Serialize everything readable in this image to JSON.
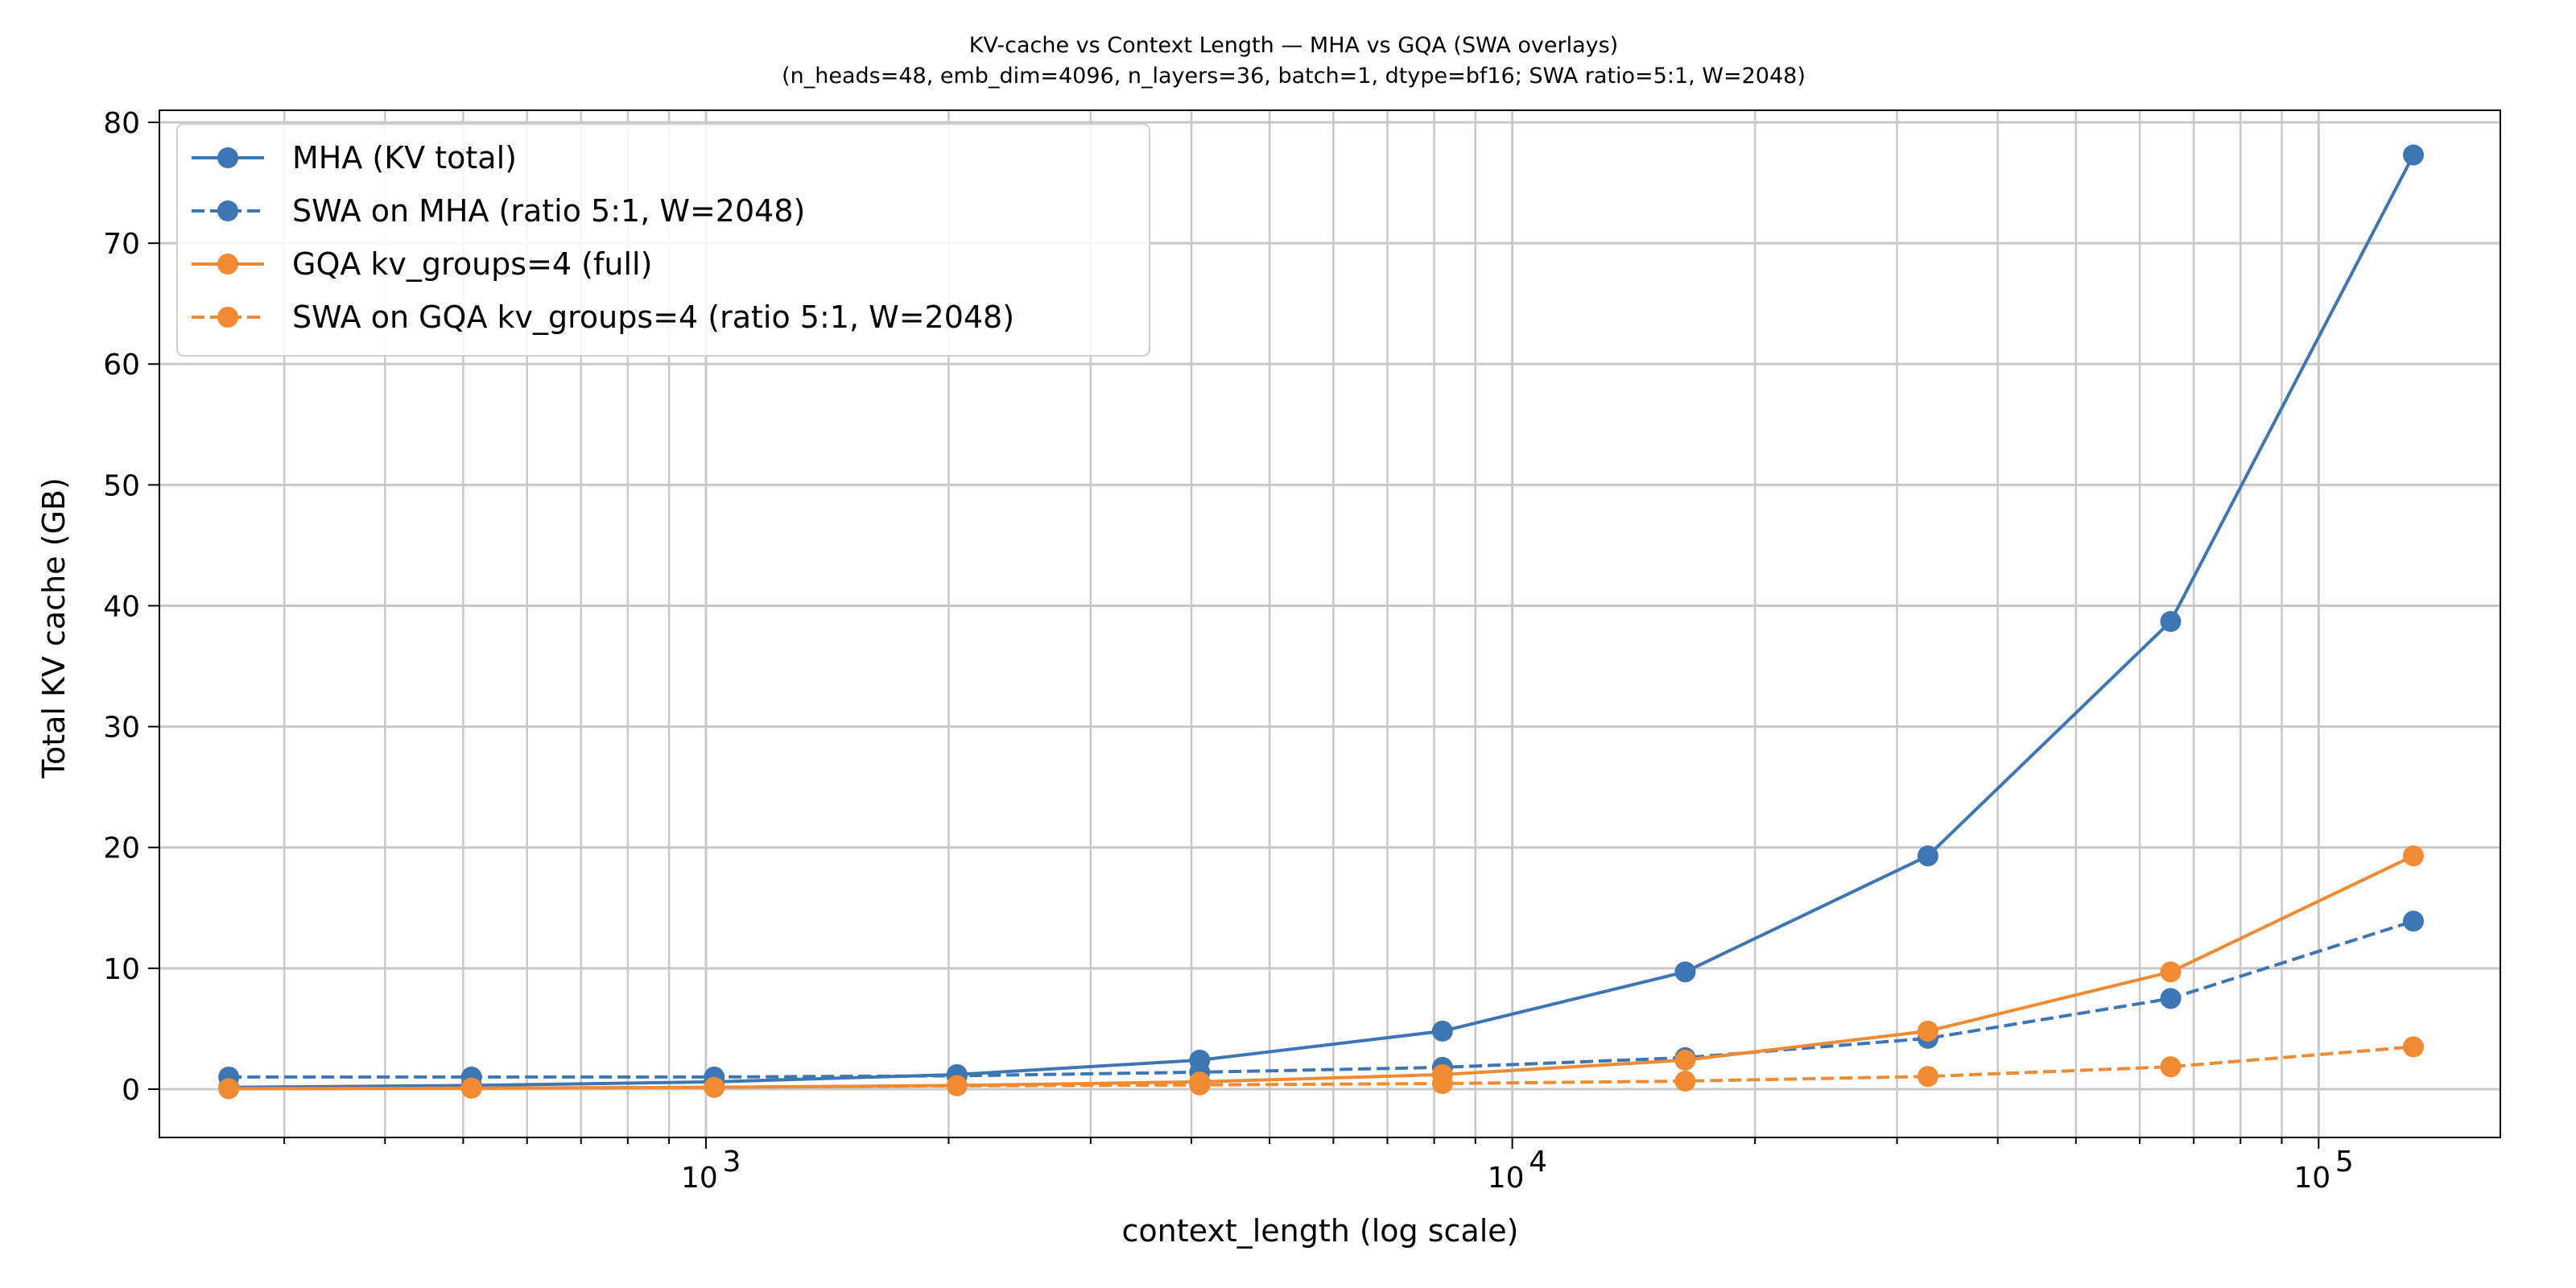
{
  "chart_data": {
    "type": "line",
    "title": "KV-cache vs Context Length — MHA vs GQA (SWA overlays)",
    "subtitle": "(n_heads=48, emb_dim=4096, n_layers=36, batch=1, dtype=bf16; SWA ratio=5:1, W=2048)",
    "xlabel": "context_length (log scale)",
    "ylabel": "Total KV cache (GB)",
    "xscale": "log",
    "xlim": [
      210,
      168000
    ],
    "ylim": [
      -4,
      81
    ],
    "x_ticks": [
      {
        "value": 1000,
        "base": "10",
        "exp": "3"
      },
      {
        "value": 10000,
        "base": "10",
        "exp": "4"
      },
      {
        "value": 100000,
        "base": "10",
        "exp": "5"
      }
    ],
    "y_ticks": [
      0,
      10,
      20,
      30,
      40,
      50,
      60,
      70,
      80
    ],
    "grid": true,
    "legend_position": "top-left",
    "x": [
      256,
      512,
      1024,
      2048,
      4096,
      8192,
      16384,
      32768,
      65536,
      131072
    ],
    "series": [
      {
        "name": "MHA (KV total)",
        "color": "#3d76b3",
        "dashed": false,
        "values": [
          0.15,
          0.3,
          0.6,
          1.2,
          2.4,
          4.8,
          9.7,
          19.3,
          38.7,
          77.3
        ]
      },
      {
        "name": "SWA on MHA (ratio 5:1, W=2048)",
        "color": "#3d76b3",
        "dashed": true,
        "values": [
          1.0,
          1.0,
          1.0,
          1.1,
          1.4,
          1.8,
          2.6,
          4.2,
          7.5,
          13.9
        ]
      },
      {
        "name": "GQA kv_groups=4 (full)",
        "color": "#f08a33",
        "dashed": false,
        "values": [
          0.04,
          0.08,
          0.15,
          0.3,
          0.6,
          1.2,
          2.4,
          4.8,
          9.7,
          19.3
        ]
      },
      {
        "name": "SWA on GQA kv_groups=4 (ratio 5:1, W=2048)",
        "color": "#f08a33",
        "dashed": true,
        "values": [
          0.04,
          0.08,
          0.15,
          0.27,
          0.35,
          0.46,
          0.66,
          1.05,
          1.85,
          3.5
        ]
      }
    ]
  }
}
